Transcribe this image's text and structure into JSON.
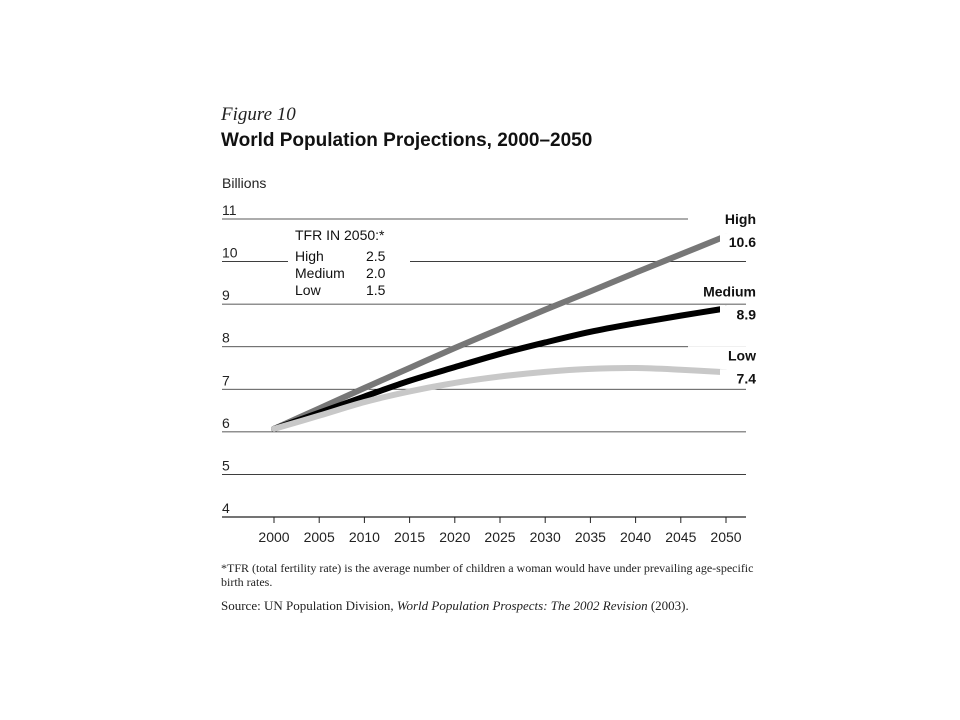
{
  "figure": {
    "label": "Figure 10",
    "title": "World Population Projections, 2000–2050"
  },
  "chart_data": {
    "type": "line",
    "ylabel": "Billions",
    "xlabel": "",
    "ylim": [
      4,
      11
    ],
    "yticks": [
      "4",
      "5",
      "6",
      "7",
      "8",
      "9",
      "10",
      "11"
    ],
    "x": [
      2000,
      2005,
      2010,
      2015,
      2020,
      2025,
      2030,
      2035,
      2040,
      2045,
      2050
    ],
    "grid": "horizontal",
    "series": [
      {
        "name": "High",
        "end_label": "10.6",
        "color": "#777777",
        "values": [
          6.07,
          6.55,
          7.03,
          7.5,
          7.97,
          8.42,
          8.87,
          9.3,
          9.74,
          10.17,
          10.6
        ]
      },
      {
        "name": "Medium",
        "end_label": "8.9",
        "color": "#000000",
        "values": [
          6.07,
          6.45,
          6.83,
          7.2,
          7.52,
          7.83,
          8.1,
          8.35,
          8.55,
          8.73,
          8.9
        ]
      },
      {
        "name": "Low",
        "end_label": "7.4",
        "color": "#c8c8c8",
        "values": [
          6.07,
          6.38,
          6.7,
          6.95,
          7.15,
          7.3,
          7.41,
          7.48,
          7.5,
          7.46,
          7.4
        ]
      }
    ],
    "legend": {
      "title": "TFR IN 2050:*",
      "placement": "top-left",
      "rows": [
        {
          "name": "High",
          "value": "2.5"
        },
        {
          "name": "Medium",
          "value": "2.0"
        },
        {
          "name": "Low",
          "value": "1.5"
        }
      ]
    }
  },
  "notes": {
    "footnote": "*TFR (total fertility rate) is the average number of children a woman would have under prevailing age-specific birth rates.",
    "source_prefix": "Source: UN Population Division, ",
    "source_title": "World Population Prospects: The 2002 Revision",
    "source_suffix": " (2003)."
  }
}
